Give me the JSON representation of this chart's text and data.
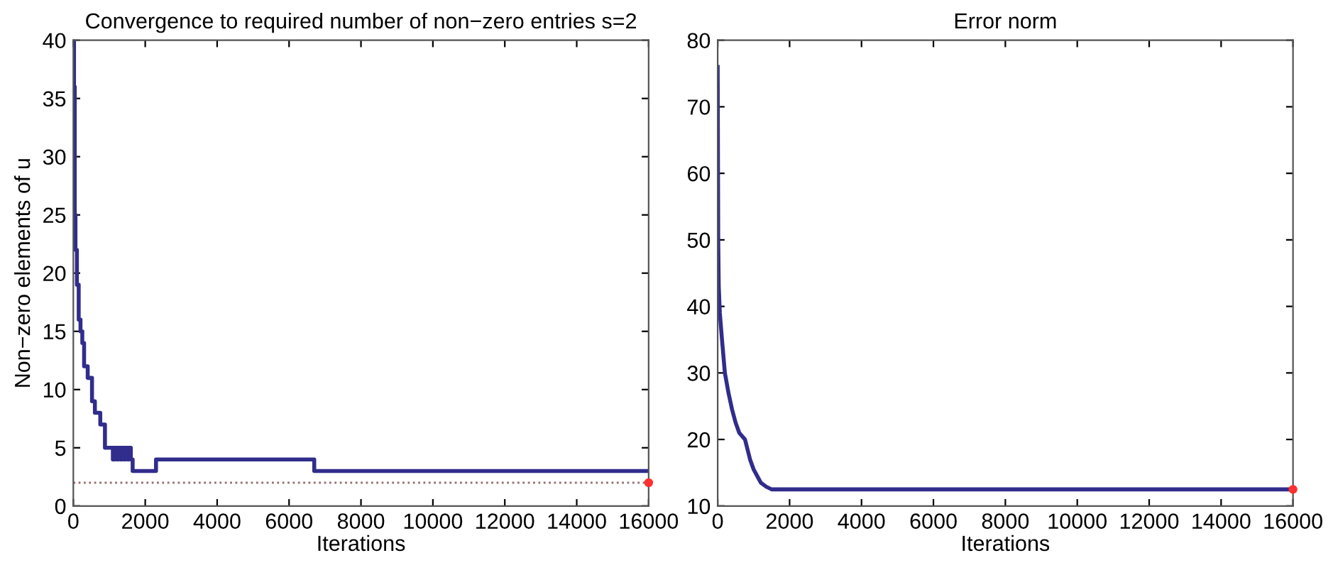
{
  "chart_data": [
    {
      "type": "step",
      "title": "Convergence to required number of non−zero entries s=2",
      "xlabel": "Iterations",
      "ylabel": "Non−zero elements of u",
      "xlim": [
        0,
        16000
      ],
      "ylim": [
        0,
        40
      ],
      "xticks": [
        0,
        2000,
        4000,
        6000,
        8000,
        10000,
        12000,
        14000,
        16000
      ],
      "yticks": [
        0,
        5,
        10,
        15,
        20,
        25,
        30,
        35,
        40
      ],
      "series": [
        {
          "color": "#302d8c",
          "x": [
            0,
            20,
            40,
            60,
            100,
            150,
            200,
            250,
            300,
            400,
            520,
            600,
            750,
            880,
            1100,
            1150,
            1200,
            1250,
            1300,
            1350,
            1400,
            1450,
            1500,
            1550,
            1600,
            1650,
            2300,
            6700,
            16000
          ],
          "values": [
            40,
            36,
            25,
            22,
            19,
            16,
            15,
            14,
            12,
            11,
            9,
            8,
            7,
            5,
            4,
            5,
            4,
            5,
            4,
            5,
            4,
            5,
            4,
            5,
            4,
            3,
            4,
            3,
            3
          ]
        },
        {
          "type": "scatter",
          "color": "#ff3030",
          "x": [
            16000
          ],
          "values": [
            2
          ]
        }
      ],
      "ref_lines": [
        {
          "axis": "y",
          "value": 2,
          "color": "#9a7070",
          "line_style": "dotted"
        }
      ]
    },
    {
      "type": "line",
      "title": "Error norm",
      "xlabel": "Iterations",
      "xlim": [
        0,
        16000
      ],
      "ylim": [
        10,
        80
      ],
      "xticks": [
        0,
        2000,
        4000,
        6000,
        8000,
        10000,
        12000,
        14000,
        16000
      ],
      "yticks": [
        10,
        20,
        30,
        40,
        50,
        60,
        70,
        80
      ],
      "series": [
        {
          "color": "#302d8c",
          "x": [
            0,
            15,
            30,
            60,
            120,
            200,
            300,
            400,
            500,
            600,
            760,
            900,
            1000,
            1100,
            1200,
            1350,
            1500,
            2000,
            16000
          ],
          "values": [
            76,
            50,
            43,
            39,
            35,
            30,
            27,
            24.5,
            22.5,
            21,
            20,
            17,
            15.5,
            14.5,
            13.5,
            12.9,
            12.5,
            12.5,
            12.5
          ]
        },
        {
          "type": "scatter",
          "color": "#ff3030",
          "x": [
            16000
          ],
          "values": [
            12.5
          ]
        }
      ]
    }
  ]
}
